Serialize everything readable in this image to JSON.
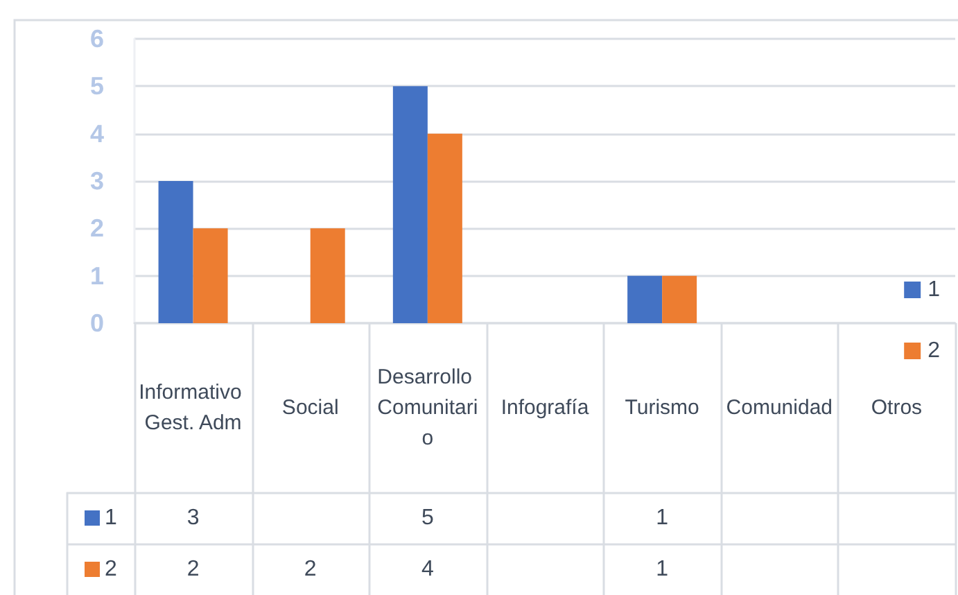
{
  "chart_data": {
    "type": "bar",
    "categories": [
      "Informativo Gest. Adm",
      "Social",
      "Desarrollo Comunitario",
      "Infografía",
      "Turismo",
      "Comunidad",
      "Otros"
    ],
    "series": [
      {
        "name": "1",
        "color": "#4472c4",
        "values": [
          3,
          null,
          5,
          null,
          1,
          null,
          null
        ]
      },
      {
        "name": "2",
        "color": "#ed7d31",
        "values": [
          2,
          2,
          4,
          null,
          1,
          null,
          null
        ]
      }
    ],
    "ylim": [
      0,
      6
    ],
    "yticks": [
      0,
      1,
      2,
      3,
      4,
      5,
      6
    ],
    "grid": "y",
    "legend": "bottom right",
    "data_labels": true
  }
}
